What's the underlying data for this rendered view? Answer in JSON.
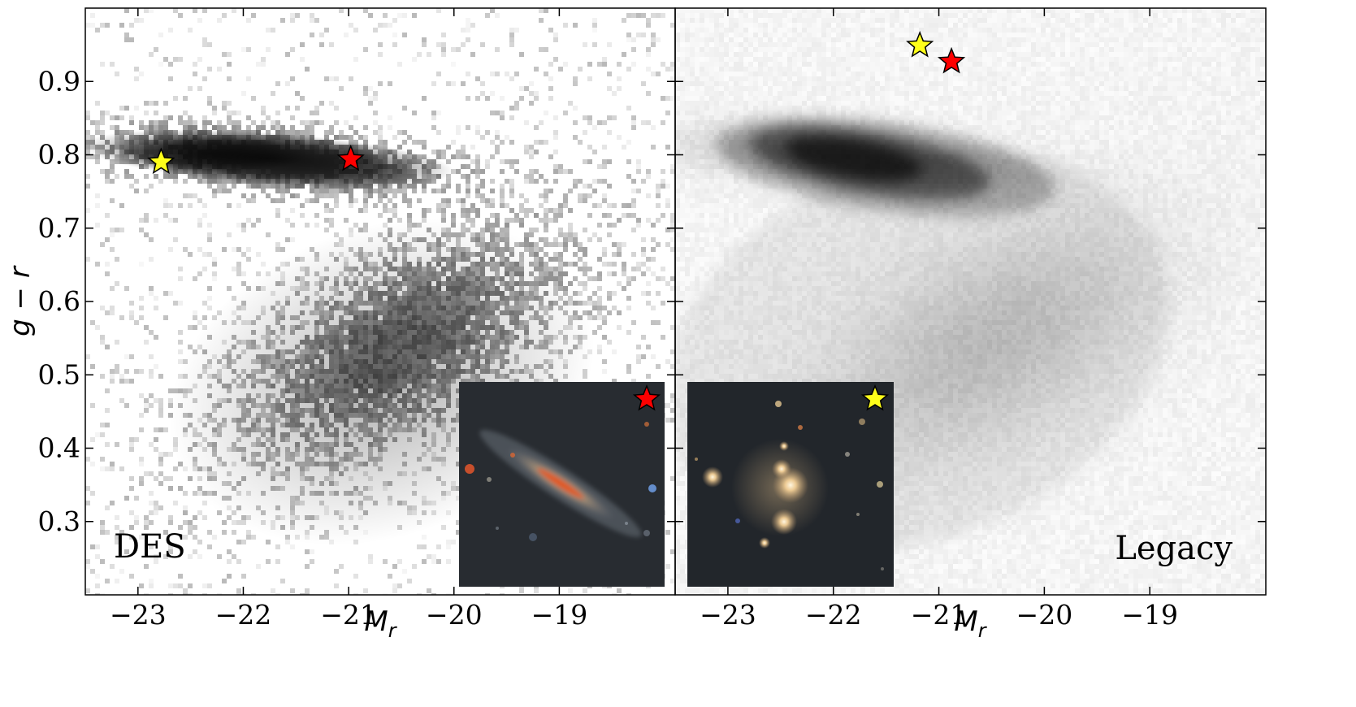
{
  "chart_data": [
    {
      "type": "heatmap",
      "panel_label": "DES",
      "xlabel": "M",
      "xlabel_sub": "r",
      "ylabel": "g − r",
      "xlim": [
        -23.5,
        -17.9
      ],
      "ylim": [
        0.2,
        1.0
      ],
      "xticks": [
        -23,
        -22,
        -21,
        -20,
        -19
      ],
      "xtick_labels": [
        "−23",
        "−22",
        "−21",
        "−20",
        "−19"
      ],
      "yticks": [
        0.3,
        0.4,
        0.5,
        0.6,
        0.7,
        0.8,
        0.9
      ],
      "ytick_labels": [
        "0.3",
        "0.4",
        "0.5",
        "0.6",
        "0.7",
        "0.8",
        "0.9"
      ],
      "markers": [
        {
          "name": "yellow-star",
          "x": -22.78,
          "y": 0.79,
          "color": "#ffff1a"
        },
        {
          "name": "red-star",
          "x": -20.98,
          "y": 0.794,
          "color": "#ff0000"
        }
      ],
      "inset": {
        "star_color": "#ff0000",
        "galaxy": "edge-on spiral"
      }
    },
    {
      "type": "heatmap",
      "panel_label": "Legacy",
      "xlabel": "M",
      "xlabel_sub": "r",
      "ylabel": "",
      "xlim": [
        -23.5,
        -17.9
      ],
      "ylim": [
        0.2,
        1.0
      ],
      "xticks": [
        -23,
        -22,
        -21,
        -20,
        -19
      ],
      "xtick_labels": [
        "−23",
        "−22",
        "−21",
        "−20",
        "−19"
      ],
      "yticks": [
        0.3,
        0.4,
        0.5,
        0.6,
        0.7,
        0.8,
        0.9
      ],
      "ytick_labels": [],
      "markers": [
        {
          "name": "yellow-star",
          "x": -21.18,
          "y": 0.949,
          "color": "#ffff1a"
        },
        {
          "name": "red-star",
          "x": -20.88,
          "y": 0.927,
          "color": "#ff0000"
        }
      ],
      "inset": {
        "star_color": "#ffff1a",
        "galaxy": "elliptical group"
      }
    }
  ]
}
